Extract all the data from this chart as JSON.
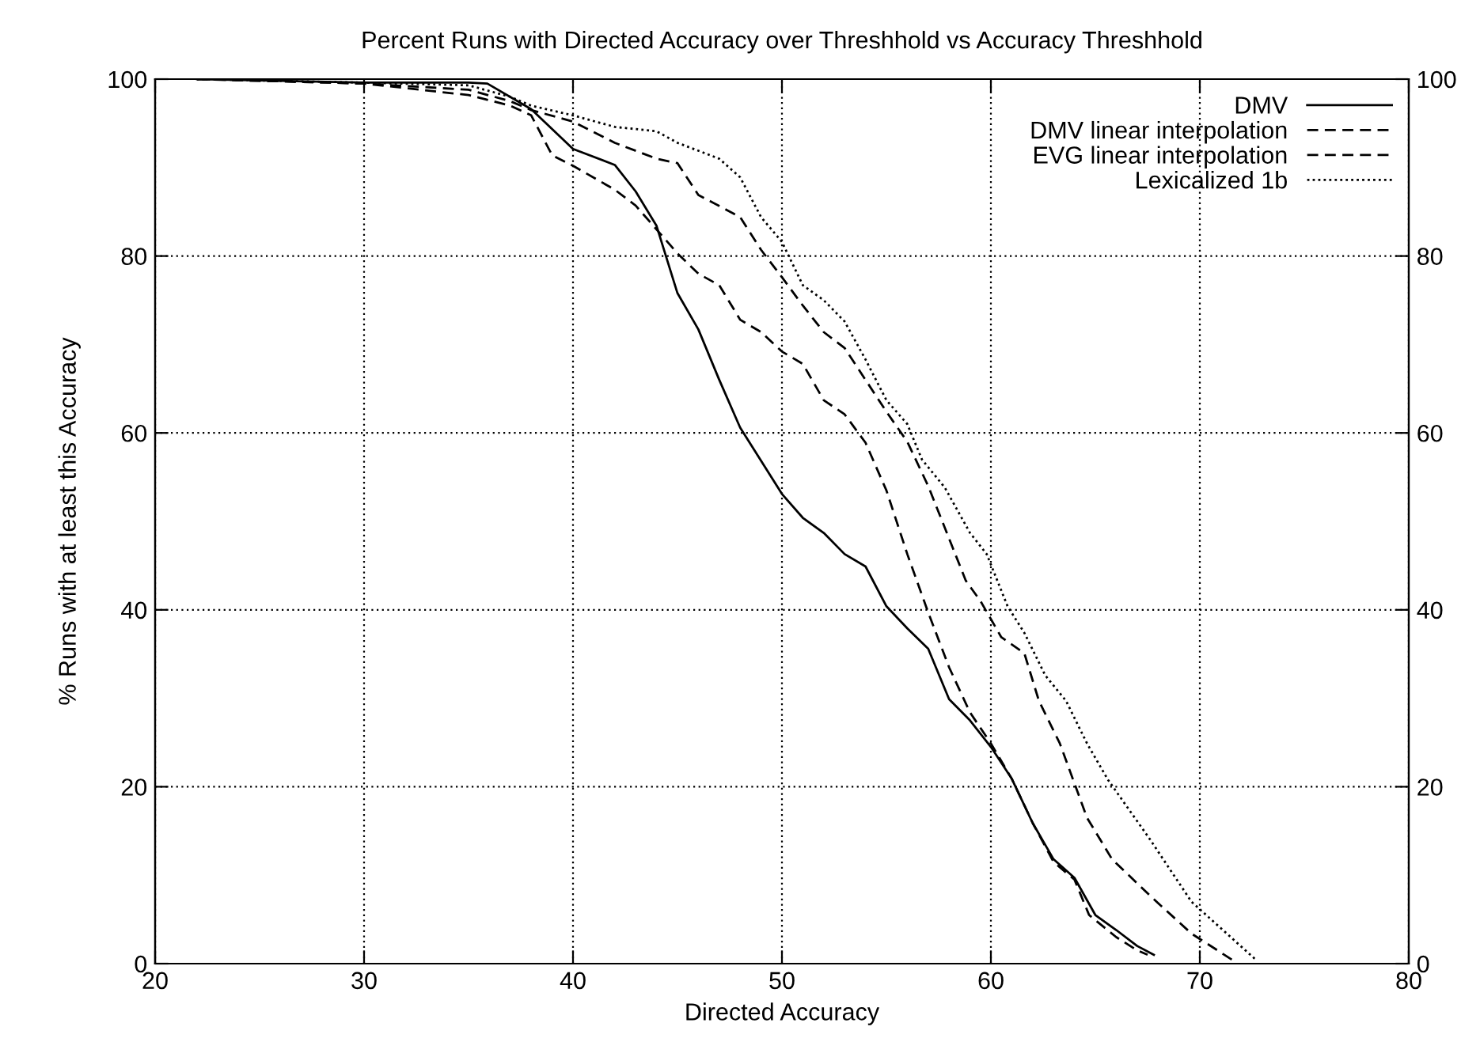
{
  "chart_data": {
    "type": "line",
    "title": "Percent Runs with Directed Accuracy over Threshhold vs Accuracy Threshhold",
    "xlabel": "Directed Accuracy",
    "ylabel": "% Runs with at least this Accuracy",
    "xlim": [
      20,
      80
    ],
    "xticks": [
      20,
      30,
      40,
      50,
      60,
      70,
      80
    ],
    "ylim": [
      0,
      100
    ],
    "yticks": [
      0,
      20,
      40,
      60,
      80,
      100
    ],
    "y2lim": [
      0,
      100
    ],
    "y2ticks": [
      0,
      20,
      40,
      60,
      80,
      100
    ],
    "grid": true,
    "legend": "top right",
    "marker": "none",
    "series": [
      {
        "name": "DMV",
        "color": "#000000",
        "line_style": "solid",
        "x": [
          22,
          30,
          35,
          35.9,
          38,
          40,
          42,
          43,
          44,
          45,
          46,
          47,
          48,
          50,
          51,
          52,
          53,
          54,
          55,
          56,
          57,
          58,
          59,
          60,
          61,
          62,
          63,
          64,
          65,
          66,
          67,
          67.8
        ],
        "values": [
          100,
          99.6,
          99.6,
          99.5,
          96.6,
          92.1,
          90.3,
          87.3,
          83.4,
          75.8,
          71.7,
          66,
          60.6,
          53.1,
          50.4,
          48.7,
          46.3,
          44.9,
          40.4,
          37.9,
          35.6,
          29.9,
          27.5,
          24.5,
          20.9,
          15.9,
          11.8,
          9.7,
          5.5,
          3.8,
          2.0,
          1.0
        ]
      },
      {
        "name": "DMV linear interpolation",
        "color": "#000000",
        "line_style": "dashed",
        "x": [
          22,
          30,
          35,
          37,
          38,
          39,
          40,
          42,
          43,
          44,
          45,
          46,
          47,
          48,
          49,
          50,
          51,
          52,
          53,
          54,
          55,
          56,
          57,
          58,
          59,
          60,
          61,
          62,
          63,
          64,
          64.7,
          66,
          67,
          67.5
        ],
        "values": [
          100,
          99.5,
          98.2,
          97,
          95.9,
          91.4,
          90.2,
          87.5,
          85.7,
          83,
          80.3,
          78,
          76.7,
          72.8,
          71.4,
          69.2,
          67.8,
          63.7,
          62.1,
          58.9,
          53.5,
          46.3,
          39.7,
          33.5,
          28.4,
          24.9,
          20.9,
          15.9,
          11.5,
          9.5,
          5.5,
          3,
          1.5,
          1
        ]
      },
      {
        "name": "EVG linear interpolation",
        "color": "#000000",
        "line_style": "dashed",
        "x": [
          22,
          30,
          35,
          37,
          38,
          40,
          42,
          44,
          45,
          46,
          48,
          49,
          50,
          51,
          52,
          53,
          54,
          55,
          56,
          57,
          58.8,
          59.5,
          60.5,
          61.6,
          62.3,
          63.3,
          64.6,
          65.8,
          67.7,
          69.6,
          71.7
        ],
        "values": [
          100,
          99.5,
          98.8,
          97.5,
          96.5,
          95.2,
          92.8,
          91,
          90.5,
          86.9,
          84.4,
          80.7,
          77.6,
          74.4,
          71.4,
          69.6,
          66,
          62.4,
          59,
          54,
          43.3,
          41,
          36.9,
          35.1,
          29.7,
          24.9,
          16.5,
          11.8,
          7.5,
          3.4,
          0.2
        ]
      },
      {
        "name": "Lexicalized 1b",
        "color": "#000000",
        "line_style": "dotted",
        "x": [
          22,
          30,
          35,
          37,
          38,
          40,
          42,
          44,
          45,
          47,
          48,
          49,
          50,
          51,
          52,
          53,
          54,
          55,
          56,
          56.7,
          57.8,
          59,
          59.8,
          60.8,
          61.6,
          62.6,
          63.6,
          64.6,
          65.6,
          67.6,
          69.6,
          72.7
        ],
        "values": [
          100,
          99.6,
          99.3,
          98,
          97,
          95.9,
          94.6,
          94.1,
          92.8,
          91,
          88.9,
          84.4,
          81.6,
          76.7,
          75,
          72.6,
          68.3,
          63.7,
          61,
          57,
          53.8,
          48.7,
          46.3,
          40.4,
          37.4,
          32.6,
          29.7,
          24.9,
          20.8,
          14.1,
          7,
          0.4
        ]
      }
    ]
  }
}
